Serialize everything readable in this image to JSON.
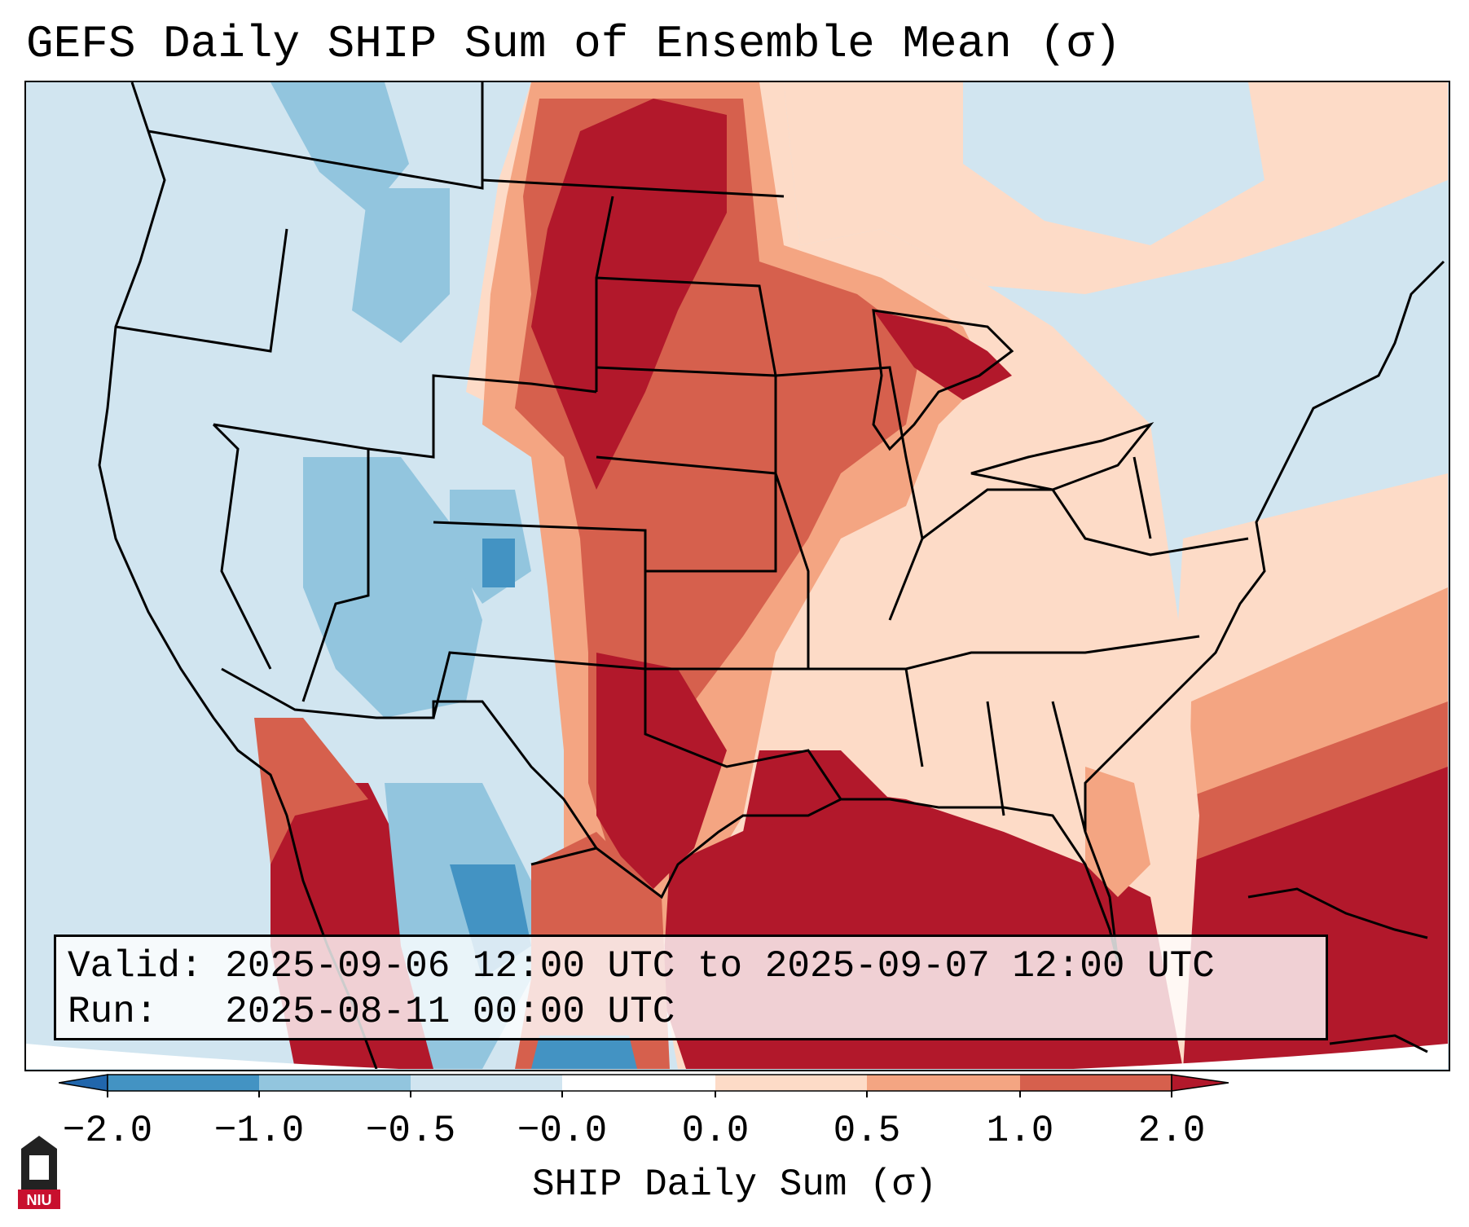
{
  "title": "GEFS Daily SHIP Sum of Ensemble Mean (σ)",
  "info": {
    "valid_label": "Valid:",
    "valid_value": "2025-09-06 12:00 UTC to 2025-09-07 12:00 UTC",
    "run_label": "Run:",
    "run_value": "2025-08-11 00:00 UTC"
  },
  "colorbar": {
    "label": "SHIP Daily Sum (σ)",
    "ticks": [
      "−2.0",
      "−1.0",
      "−0.5",
      "−0.0",
      "0.0",
      "0.5",
      "1.0",
      "2.0"
    ],
    "colors": [
      "#2166ac",
      "#4393c3",
      "#92c5de",
      "#d1e5f0",
      "#ffffff",
      "#fddbc7",
      "#f4a582",
      "#d6604d",
      "#b2182b"
    ]
  },
  "logo": {
    "text": "NIU",
    "name": "niu-logo"
  },
  "colors": {
    "very_high": "#b2182b",
    "high": "#d6604d",
    "moderate": "#f4a582",
    "low_pos": "#fddbc7",
    "low_neg": "#d1e5f0",
    "moderate_neg": "#92c5de",
    "high_neg": "#4393c3"
  }
}
